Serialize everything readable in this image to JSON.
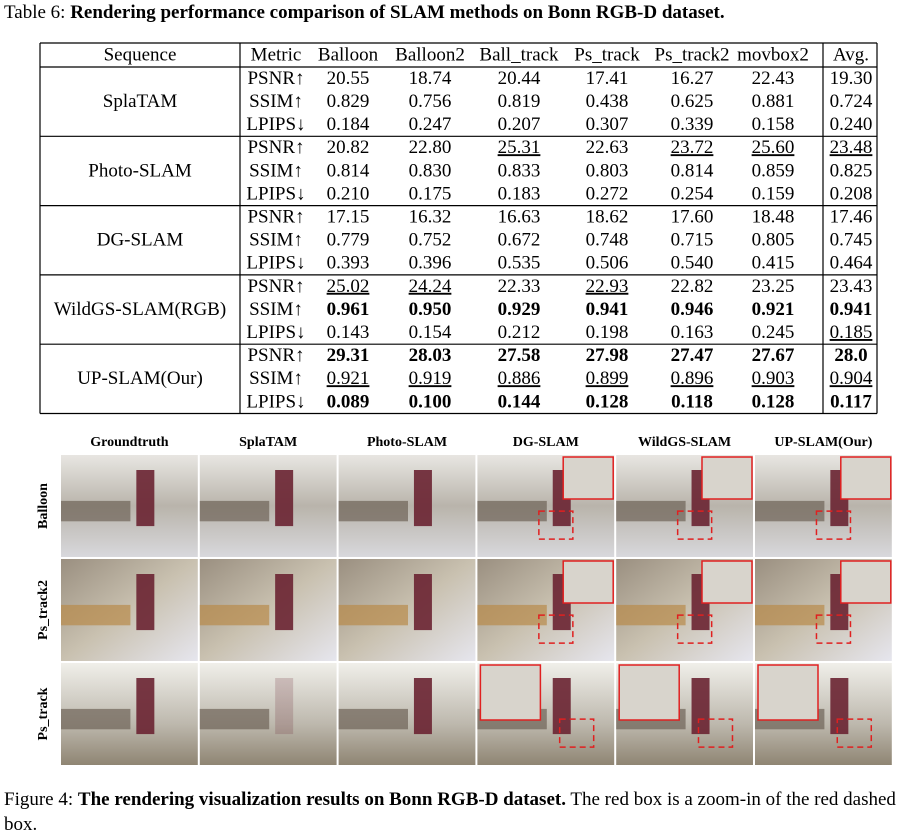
{
  "table": {
    "caption_label": "Table 6:",
    "caption": "Rendering performance comparison of SLAM methods on Bonn RGB-D dataset.",
    "columns": [
      "Sequence",
      "Metric",
      "Balloon",
      "Balloon2",
      "Ball_track",
      "Ps_track",
      "Ps_track2",
      "movbox2",
      "Avg."
    ],
    "groups": [
      {
        "method": "SplaTAM",
        "rows": [
          {
            "metric": "PSNR↑",
            "values": [
              "20.55",
              "18.74",
              "20.44",
              "17.41",
              "16.27",
              "22.43",
              "19.30"
            ],
            "bold": [],
            "underline": []
          },
          {
            "metric": "SSIM↑",
            "values": [
              "0.829",
              "0.756",
              "0.819",
              "0.438",
              "0.625",
              "0.881",
              "0.724"
            ],
            "bold": [],
            "underline": []
          },
          {
            "metric": "LPIPS↓",
            "values": [
              "0.184",
              "0.247",
              "0.207",
              "0.307",
              "0.339",
              "0.158",
              "0.240"
            ],
            "bold": [],
            "underline": []
          }
        ]
      },
      {
        "method": "Photo-SLAM",
        "rows": [
          {
            "metric": "PSNR↑",
            "values": [
              "20.82",
              "22.80",
              "25.31",
              "22.63",
              "23.72",
              "25.60",
              "23.48"
            ],
            "bold": [],
            "underline": [
              2,
              4,
              5,
              6
            ]
          },
          {
            "metric": "SSIM↑",
            "values": [
              "0.814",
              "0.830",
              "0.833",
              "0.803",
              "0.814",
              "0.859",
              "0.825"
            ],
            "bold": [],
            "underline": []
          },
          {
            "metric": "LPIPS↓",
            "values": [
              "0.210",
              "0.175",
              "0.183",
              "0.272",
              "0.254",
              "0.159",
              "0.208"
            ],
            "bold": [],
            "underline": []
          }
        ]
      },
      {
        "method": "DG-SLAM",
        "rows": [
          {
            "metric": "PSNR↑",
            "values": [
              "17.15",
              "16.32",
              "16.63",
              "18.62",
              "17.60",
              "18.48",
              "17.46"
            ],
            "bold": [],
            "underline": []
          },
          {
            "metric": "SSIM↑",
            "values": [
              "0.779",
              "0.752",
              "0.672",
              "0.748",
              "0.715",
              "0.805",
              "0.745"
            ],
            "bold": [],
            "underline": []
          },
          {
            "metric": "LPIPS↓",
            "values": [
              "0.393",
              "0.396",
              "0.535",
              "0.506",
              "0.540",
              "0.415",
              "0.464"
            ],
            "bold": [],
            "underline": []
          }
        ]
      },
      {
        "method": "WildGS-SLAM(RGB)",
        "rows": [
          {
            "metric": "PSNR↑",
            "values": [
              "25.02",
              "24.24",
              "22.33",
              "22.93",
              "22.82",
              "23.25",
              "23.43"
            ],
            "bold": [],
            "underline": [
              0,
              1,
              3
            ]
          },
          {
            "metric": "SSIM↑",
            "values": [
              "0.961",
              "0.950",
              "0.929",
              "0.941",
              "0.946",
              "0.921",
              "0.941"
            ],
            "bold": [
              0,
              1,
              2,
              3,
              4,
              5,
              6
            ],
            "underline": []
          },
          {
            "metric": "LPIPS↓",
            "values": [
              "0.143",
              "0.154",
              "0.212",
              "0.198",
              "0.163",
              "0.245",
              "0.185"
            ],
            "bold": [],
            "underline": [
              6
            ]
          }
        ]
      },
      {
        "method": "UP-SLAM(Our)",
        "rows": [
          {
            "metric": "PSNR↑",
            "values": [
              "29.31",
              "28.03",
              "27.58",
              "27.98",
              "27.47",
              "27.67",
              "28.0"
            ],
            "bold": [
              0,
              1,
              2,
              3,
              4,
              5,
              6
            ],
            "underline": []
          },
          {
            "metric": "SSIM↑",
            "values": [
              "0.921",
              "0.919",
              "0.886",
              "0.899",
              "0.896",
              "0.903",
              "0.904"
            ],
            "bold": [],
            "underline": [
              0,
              1,
              2,
              3,
              4,
              5,
              6
            ]
          },
          {
            "metric": "LPIPS↓",
            "values": [
              "0.089",
              "0.100",
              "0.144",
              "0.128",
              "0.118",
              "0.128",
              "0.117"
            ],
            "bold": [
              0,
              1,
              2,
              3,
              4,
              5,
              6
            ],
            "underline": []
          }
        ]
      }
    ]
  },
  "figure": {
    "columns": [
      "Groundtruth",
      "SplaTAM",
      "Photo-SLAM",
      "DG-SLAM",
      "WildGS-SLAM",
      "UP-SLAM(Our)"
    ],
    "rows": [
      "Balloon",
      "Ps_track2",
      "Ps_track"
    ],
    "caption_label": "Figure 4:",
    "caption_bold": "The rendering visualization results on Bonn RGB-D dataset.",
    "caption": "The red box is a zoom-in of the red dashed box."
  }
}
